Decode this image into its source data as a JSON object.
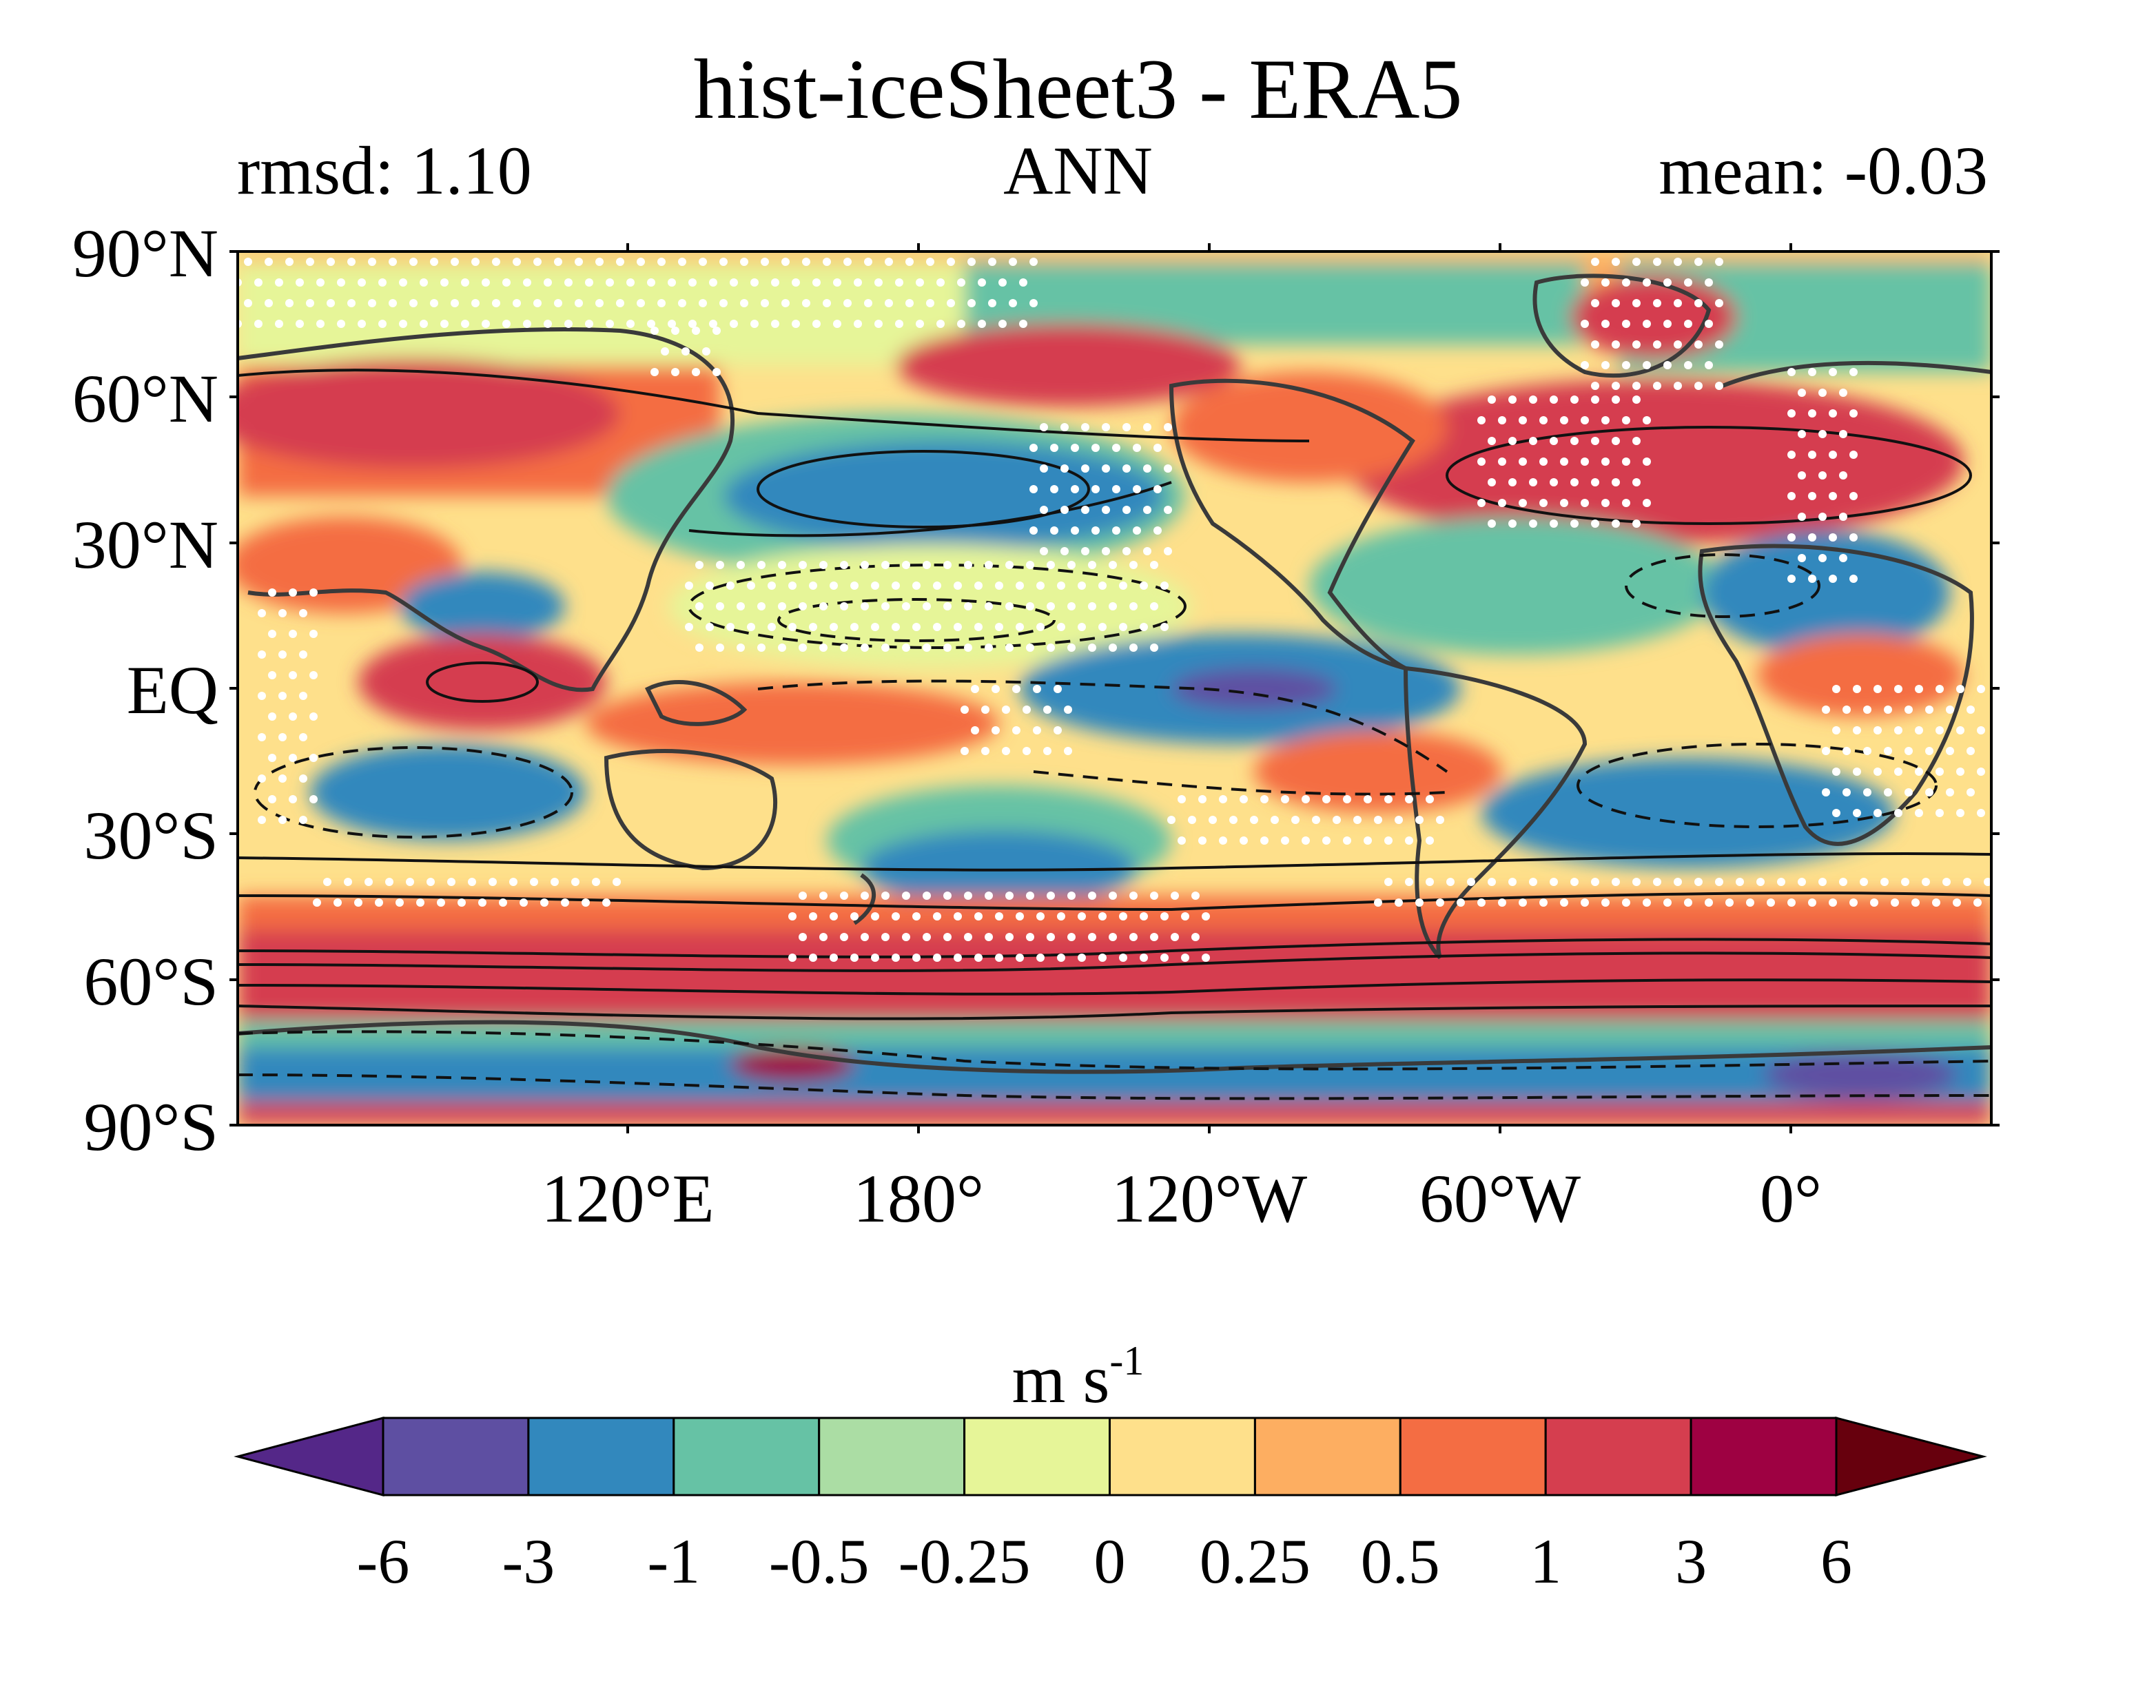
{
  "title": "hist-iceSheet3 - ERA5",
  "stats": {
    "rmsd": "rmsd: 1.10",
    "season": "ANN",
    "mean": "mean: -0.03"
  },
  "axes": {
    "lat_labels": [
      "90°N",
      "60°N",
      "30°N",
      "EQ",
      "30°S",
      "60°S",
      "90°S"
    ],
    "lon_labels": [
      "120°E",
      "180°",
      "120°W",
      "60°W",
      "0°"
    ]
  },
  "colorbar": {
    "unit_base": "m s",
    "unit_exp": "-1",
    "tick_labels": [
      "-6",
      "-3",
      "-1",
      "-0.5",
      "-0.25",
      "0",
      "0.25",
      "0.5",
      "1",
      "3",
      "6"
    ],
    "colors": [
      "#5e4fa2",
      "#3288bd",
      "#66c2a5",
      "#abdda4",
      "#e6f598",
      "#fee08b",
      "#fdae61",
      "#f46d43",
      "#d53e4f",
      "#9e0142"
    ],
    "under_color": "#542788",
    "over_color": "#67000d"
  },
  "colors": {
    "land_outline": "#3a3a3a",
    "contour": "#111111",
    "stipple": "#ffffff"
  }
}
